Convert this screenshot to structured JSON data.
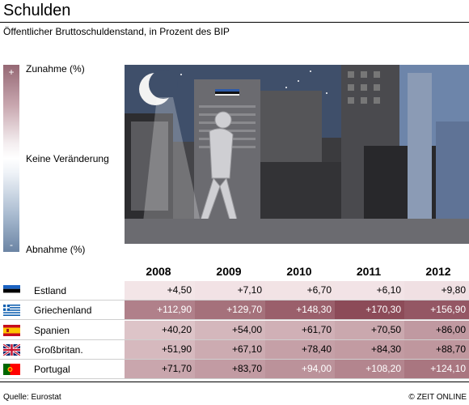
{
  "header": {
    "title": "Schulden",
    "subtitle": "Öffentlicher Bruttoschuldenstand, in Prozent des BIP"
  },
  "legend": {
    "plus": "+",
    "minus": "-",
    "increase": "Zunahme (%)",
    "neutral": "Keine Veränderung",
    "decrease": "Abnahme (%)"
  },
  "illustration": {
    "icon": "night-city-walker-illustration"
  },
  "chart_data": {
    "type": "table",
    "title": "Schulden",
    "subtitle": "Öffentlicher Bruttoschuldenstand, in Prozent des BIP",
    "columns": [
      "2008",
      "2009",
      "2010",
      "2011",
      "2012"
    ],
    "rows": [
      {
        "country": "Estland",
        "flag": "estonia-flag-icon",
        "values": [
          4.5,
          7.1,
          6.7,
          6.1,
          9.8
        ],
        "labels": [
          "+4,50",
          "+7,10",
          "+6,70",
          "+6,10",
          "+9,80"
        ]
      },
      {
        "country": "Griechenland",
        "flag": "greece-flag-icon",
        "values": [
          112.9,
          129.7,
          148.3,
          170.3,
          156.9
        ],
        "labels": [
          "+112,90",
          "+129,70",
          "+148,30",
          "+170,30",
          "+156,90"
        ]
      },
      {
        "country": "Spanien",
        "flag": "spain-flag-icon",
        "values": [
          40.2,
          54.0,
          61.7,
          70.5,
          86.0
        ],
        "labels": [
          "+40,20",
          "+54,00",
          "+61,70",
          "+70,50",
          "+86,00"
        ]
      },
      {
        "country": "Großbritan.",
        "flag": "uk-flag-icon",
        "values": [
          51.9,
          67.1,
          78.4,
          84.3,
          88.7
        ],
        "labels": [
          "+51,90",
          "+67,10",
          "+78,40",
          "+84,30",
          "+88,70"
        ]
      },
      {
        "country": "Portugal",
        "flag": "portugal-flag-icon",
        "values": [
          71.7,
          83.7,
          94.0,
          108.2,
          124.1
        ],
        "labels": [
          "+71,70",
          "+83,70",
          "+94,00",
          "+108,20",
          "+124,10"
        ]
      }
    ],
    "color_scale": {
      "max_value": 170.3,
      "low_color": "#f6e9eb",
      "high_color": "#8c4b58"
    }
  },
  "footer": {
    "source": "Quelle: Eurostat",
    "copyright": "© ZEIT ONLINE"
  }
}
